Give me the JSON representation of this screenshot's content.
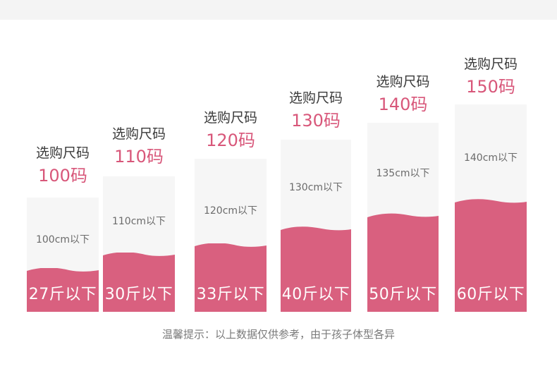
{
  "columns": [
    {
      "label": "选购尺码",
      "size": "100码",
      "height": "100cm以下",
      "weight": "27斤以下",
      "fill_fraction": 0.38
    },
    {
      "label": "选购尺码",
      "size": "110码",
      "height": "110cm以下",
      "weight": "30斤以下",
      "fill_fraction": 0.43
    },
    {
      "label": "选购尺码",
      "size": "120码",
      "height": "120cm以下",
      "weight": "33斤以下",
      "fill_fraction": 0.47
    },
    {
      "label": "选购尺码",
      "size": "130码",
      "height": "130cm以下",
      "weight": "40斤以下",
      "fill_fraction": 0.5
    },
    {
      "label": "选购尺码",
      "size": "140码",
      "height": "135cm以下",
      "weight": "50斤以下",
      "fill_fraction": 0.53
    },
    {
      "label": "选购尺码",
      "size": "150码",
      "height": "140cm以下",
      "weight": "60斤以下",
      "fill_fraction": 0.56
    }
  ],
  "note": "温馨提示：以上数据仅供参考，由于孩子体型各异",
  "colors": {
    "accent": "#d8577a",
    "fill": "#d9607f",
    "box": "#f6f6f6",
    "band": "#f4f4f4"
  }
}
